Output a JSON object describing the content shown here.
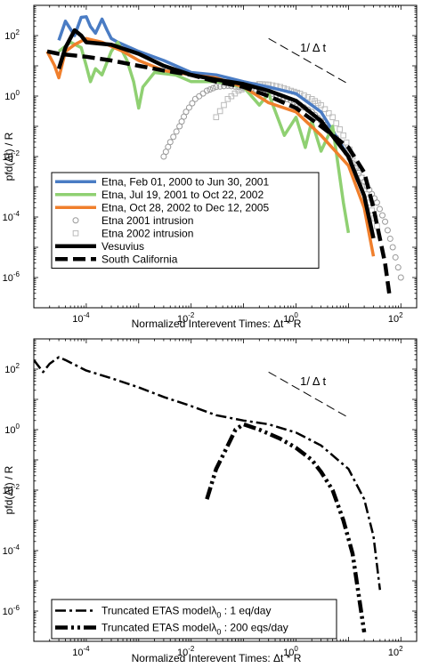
{
  "chart_data": [
    {
      "type": "line",
      "xscale": "log",
      "yscale": "log",
      "xlim": [
        1e-05,
        200
      ],
      "ylim": [
        1e-07,
        1000
      ],
      "x_ticks": [
        {
          "value": 0.0001,
          "base": "10",
          "exp": "-4"
        },
        {
          "value": 0.01,
          "base": "10",
          "exp": "-2"
        },
        {
          "value": 1,
          "base": "10",
          "exp": "0"
        },
        {
          "value": 100,
          "base": "10",
          "exp": "2"
        }
      ],
      "y_ticks": [
        {
          "value": 100,
          "base": "10",
          "exp": "2"
        },
        {
          "value": 1,
          "base": "10",
          "exp": "0"
        },
        {
          "value": 0.01,
          "base": "10",
          "exp": "-2"
        },
        {
          "value": 0.0001,
          "base": "10",
          "exp": "-4"
        },
        {
          "value": 1e-06,
          "base": "10",
          "exp": "-6"
        }
      ],
      "xlabel": "Normalized Interevent Times: Δt * R",
      "ylabel": "pfd(Δt) / R",
      "legend_position": "lower-left",
      "annotation": {
        "text": "1/ Δ t",
        "line": [
          [
            0.3,
            80
          ],
          [
            10,
            2.5
          ]
        ],
        "text_at": [
          1.2,
          30
        ]
      },
      "series": [
        {
          "name": "Etna, Feb 01, 2000 to Jun 30, 2001",
          "color": "#4a7cc4",
          "style": "solid",
          "width": 3.5,
          "points": [
            [
              3e-05,
              70
            ],
            [
              4e-05,
              300
            ],
            [
              6e-05,
              100
            ],
            [
              8e-05,
              400
            ],
            [
              0.0001,
              420
            ],
            [
              0.00012,
              200
            ],
            [
              0.00015,
              120
            ],
            [
              0.0002,
              350
            ],
            [
              0.00025,
              150
            ],
            [
              0.0003,
              80
            ],
            [
              0.0004,
              60
            ],
            [
              0.001,
              30
            ],
            [
              0.003,
              15
            ],
            [
              0.01,
              6
            ],
            [
              0.03,
              5
            ],
            [
              0.1,
              3
            ],
            [
              0.3,
              2
            ],
            [
              1,
              1.2
            ],
            [
              3,
              0.3
            ],
            [
              10,
              0.01
            ],
            [
              15,
              0.0015
            ]
          ]
        },
        {
          "name": "Etna, Jul 19, 2001 to Oct 22, 2002",
          "color": "#8fd072",
          "style": "solid",
          "width": 3.5,
          "points": [
            [
              3e-05,
              30
            ],
            [
              5e-05,
              60
            ],
            [
              8e-05,
              40
            ],
            [
              0.0001,
              10
            ],
            [
              0.00012,
              3
            ],
            [
              0.00015,
              8
            ],
            [
              0.0002,
              5
            ],
            [
              0.0003,
              30
            ],
            [
              0.0004,
              60
            ],
            [
              0.0006,
              15
            ],
            [
              0.0008,
              3
            ],
            [
              0.001,
              0.4
            ],
            [
              0.0012,
              2
            ],
            [
              0.002,
              6
            ],
            [
              0.005,
              5
            ],
            [
              0.01,
              3
            ],
            [
              0.03,
              3
            ],
            [
              0.1,
              2
            ],
            [
              0.2,
              0.5
            ],
            [
              0.3,
              1.2
            ],
            [
              0.6,
              0.05
            ],
            [
              1,
              0.2
            ],
            [
              1.5,
              0.02
            ],
            [
              2,
              0.15
            ],
            [
              3,
              0.015
            ],
            [
              5,
              0.1
            ],
            [
              8,
              0.0003
            ],
            [
              10,
              3e-05
            ]
          ]
        },
        {
          "name": "Etna, Oct 28, 2002 to Dec 12, 2005",
          "color": "#f07f2c",
          "style": "solid",
          "width": 3.5,
          "points": [
            [
              1.8e-05,
              30
            ],
            [
              2.5e-05,
              10
            ],
            [
              3e-05,
              4
            ],
            [
              4e-05,
              30
            ],
            [
              6e-05,
              50
            ],
            [
              0.0001,
              80
            ],
            [
              0.0002,
              60
            ],
            [
              0.0005,
              30
            ],
            [
              0.001,
              15
            ],
            [
              0.003,
              7
            ],
            [
              0.01,
              5
            ],
            [
              0.03,
              4
            ],
            [
              0.1,
              2
            ],
            [
              0.3,
              0.6
            ],
            [
              1,
              0.3
            ],
            [
              3,
              0.05
            ],
            [
              10,
              0.005
            ],
            [
              20,
              0.0002
            ],
            [
              30,
              5e-06
            ]
          ]
        },
        {
          "name": "Etna 2001 intrusion",
          "color": "#999999",
          "style": "circles",
          "points": [
            [
              0.003,
              0.01
            ],
            [
              0.004,
              0.03
            ],
            [
              0.006,
              0.1
            ],
            [
              0.008,
              0.3
            ],
            [
              0.012,
              0.8
            ],
            [
              0.02,
              1.5
            ],
            [
              0.03,
              2
            ],
            [
              0.05,
              2.2
            ],
            [
              0.08,
              2
            ],
            [
              0.12,
              1.8
            ],
            [
              0.2,
              1.6
            ],
            [
              0.3,
              1.3
            ],
            [
              0.5,
              1.0
            ],
            [
              0.8,
              0.7
            ],
            [
              1.2,
              0.5
            ],
            [
              2,
              0.3
            ],
            [
              3,
              0.15
            ],
            [
              5,
              0.06
            ],
            [
              8,
              0.02
            ],
            [
              12,
              0.006
            ],
            [
              18,
              0.002
            ],
            [
              25,
              0.0008
            ],
            [
              35,
              0.0003
            ],
            [
              50,
              7e-05
            ],
            [
              70,
              1e-05
            ],
            [
              100,
              1e-06
            ]
          ]
        },
        {
          "name": "Etna 2002 intrusion",
          "color": "#bbbbbb",
          "style": "squares",
          "points": [
            [
              0.03,
              0.2
            ],
            [
              0.05,
              0.8
            ],
            [
              0.08,
              1.5
            ],
            [
              0.12,
              2
            ],
            [
              0.2,
              2.5
            ],
            [
              0.3,
              2.4
            ],
            [
              0.5,
              2
            ],
            [
              0.8,
              1.5
            ],
            [
              1.2,
              1.2
            ],
            [
              2,
              0.8
            ],
            [
              3,
              0.5
            ],
            [
              5,
              0.2
            ],
            [
              8,
              0.05
            ],
            [
              12,
              0.01
            ],
            [
              18,
              0.002
            ],
            [
              25,
              0.0003
            ],
            [
              35,
              5e-05
            ]
          ]
        },
        {
          "name": "Vesuvius",
          "color": "#000000",
          "style": "solid",
          "width": 4.5,
          "points": [
            [
              3e-05,
              8
            ],
            [
              4e-05,
              40
            ],
            [
              6e-05,
              150
            ],
            [
              8e-05,
              100
            ],
            [
              0.0001,
              60
            ],
            [
              0.0003,
              50
            ],
            [
              0.001,
              25
            ],
            [
              0.003,
              10
            ],
            [
              0.01,
              5
            ],
            [
              0.03,
              3.5
            ],
            [
              0.1,
              2.5
            ],
            [
              0.3,
              1.5
            ],
            [
              1,
              0.7
            ],
            [
              3,
              0.15
            ],
            [
              10,
              0.01
            ],
            [
              20,
              0.0005
            ],
            [
              30,
              2e-05
            ]
          ]
        },
        {
          "name": "South California",
          "color": "#000000",
          "style": "dashed",
          "width": 4.5,
          "points": [
            [
              1.8e-05,
              30
            ],
            [
              3e-05,
              25
            ],
            [
              0.0001,
              20
            ],
            [
              0.0003,
              15
            ],
            [
              0.001,
              10
            ],
            [
              0.003,
              7
            ],
            [
              0.01,
              5
            ],
            [
              0.03,
              3
            ],
            [
              0.1,
              2
            ],
            [
              0.3,
              1
            ],
            [
              1,
              0.4
            ],
            [
              3,
              0.1
            ],
            [
              10,
              0.02
            ],
            [
              20,
              0.003
            ],
            [
              30,
              0.0002
            ],
            [
              50,
              3e-06
            ],
            [
              60,
              3e-07
            ]
          ]
        }
      ]
    },
    {
      "type": "line",
      "xscale": "log",
      "yscale": "log",
      "xlim": [
        1e-05,
        200
      ],
      "ylim": [
        1e-07,
        1000
      ],
      "x_ticks": [
        {
          "value": 0.0001,
          "base": "10",
          "exp": "-4"
        },
        {
          "value": 0.01,
          "base": "10",
          "exp": "-2"
        },
        {
          "value": 1,
          "base": "10",
          "exp": "0"
        },
        {
          "value": 100,
          "base": "10",
          "exp": "2"
        }
      ],
      "y_ticks": [
        {
          "value": 100,
          "base": "10",
          "exp": "2"
        },
        {
          "value": 1,
          "base": "10",
          "exp": "0"
        },
        {
          "value": 0.01,
          "base": "10",
          "exp": "-2"
        },
        {
          "value": 0.0001,
          "base": "10",
          "exp": "-4"
        },
        {
          "value": 1e-06,
          "base": "10",
          "exp": "-6"
        }
      ],
      "xlabel": "Normalized Interevent Times: Δt * R",
      "ylabel": "pfd(Δt) / R",
      "legend_position": "lower-left",
      "annotation": {
        "text": "1/ Δ t",
        "line": [
          [
            0.3,
            80
          ],
          [
            10,
            2.5
          ]
        ],
        "text_at": [
          1.2,
          30
        ]
      },
      "series": [
        {
          "name": "Truncated ETAS modelλ",
          "subscript": "0",
          "suffix": " : 1 eq/day",
          "color": "#000000",
          "style": "dashdot",
          "width": 2.5,
          "points": [
            [
              1e-05,
              200
            ],
            [
              1.5e-05,
              80
            ],
            [
              2e-05,
              150
            ],
            [
              3e-05,
              250
            ],
            [
              4e-05,
              200
            ],
            [
              0.0001,
              90
            ],
            [
              0.0003,
              50
            ],
            [
              0.001,
              25
            ],
            [
              0.003,
              12
            ],
            [
              0.01,
              6
            ],
            [
              0.03,
              3
            ],
            [
              0.1,
              2
            ],
            [
              0.3,
              1.5
            ],
            [
              1,
              0.8
            ],
            [
              3,
              0.3
            ],
            [
              10,
              0.05
            ],
            [
              20,
              0.005
            ],
            [
              30,
              0.0003
            ],
            [
              40,
              5e-06
            ]
          ]
        },
        {
          "name": "Truncated ETAS modelλ",
          "subscript": "0",
          "suffix": " : 200 eqs/day",
          "color": "#000000",
          "style": "dashdotdot",
          "width": 4.5,
          "points": [
            [
              0.02,
              0.005
            ],
            [
              0.03,
              0.05
            ],
            [
              0.05,
              0.3
            ],
            [
              0.07,
              1
            ],
            [
              0.1,
              1.5
            ],
            [
              0.2,
              1
            ],
            [
              0.5,
              0.5
            ],
            [
              1,
              0.25
            ],
            [
              2,
              0.1
            ],
            [
              3,
              0.04
            ],
            [
              5,
              0.01
            ],
            [
              8,
              0.001
            ],
            [
              12,
              8e-05
            ],
            [
              20,
              2e-07
            ]
          ]
        }
      ]
    }
  ]
}
